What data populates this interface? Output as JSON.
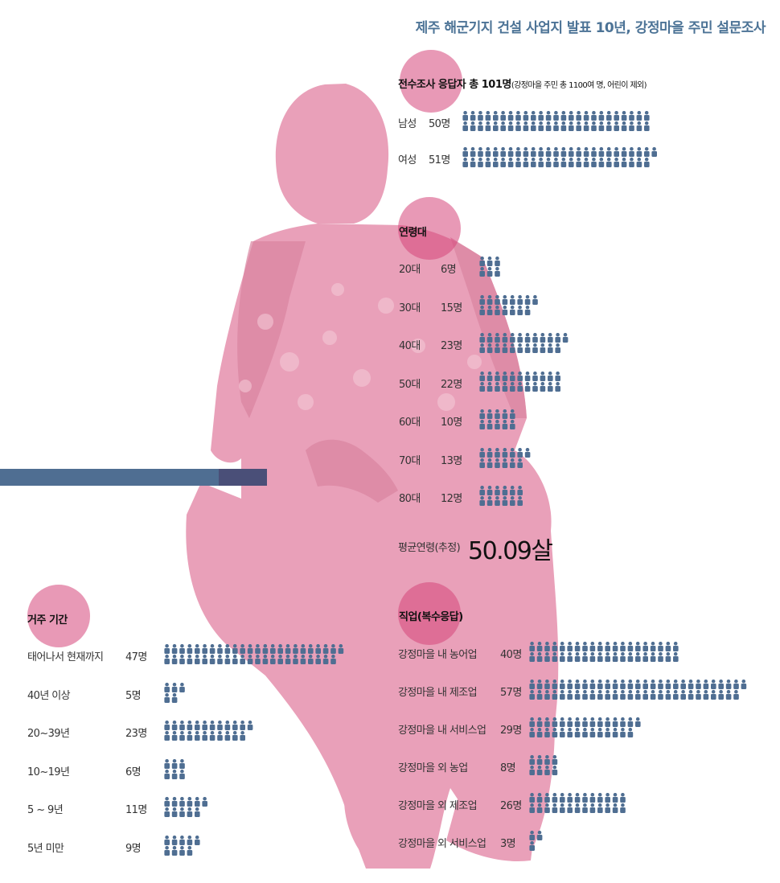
{
  "title": "제주 해군기지 건설 사업지 발표 10년, 강정마을 주민 설문조사",
  "colors": {
    "pink": "#e9a0b9",
    "magenta": "#d6467a",
    "navy": "#4f6e92",
    "title": "#4c7396"
  },
  "chart_data": [
    {
      "type": "pictograph",
      "title": "전수조사 응답자 총 101명",
      "subtitle": "(강정마을 주민 총 1100여 명, 어린이 제외)",
      "categories": [
        "남성",
        "여성"
      ],
      "values": [
        50,
        51
      ],
      "value_labels": [
        "50명",
        "51명"
      ]
    },
    {
      "type": "pictograph",
      "title": "연령대",
      "categories": [
        "20대",
        "30대",
        "40대",
        "50대",
        "60대",
        "70대",
        "80대"
      ],
      "values": [
        6,
        15,
        23,
        22,
        10,
        13,
        12
      ],
      "value_labels": [
        "6명",
        "15명",
        "23명",
        "22명",
        "10명",
        "13명",
        "12명"
      ],
      "average_label": "평균연령(추정)",
      "average_value": "50.09살"
    },
    {
      "type": "pictograph",
      "title": "거주 기간",
      "categories": [
        "태어나서 현재까지",
        "40년 이상",
        "20~39년",
        "10~19년",
        "5 ~ 9년",
        "5년 미만"
      ],
      "values": [
        47,
        5,
        23,
        6,
        11,
        9
      ],
      "value_labels": [
        "47명",
        "5명",
        "23명",
        "6명",
        "11명",
        "9명"
      ]
    },
    {
      "type": "pictograph",
      "title": "직업(복수응답)",
      "categories": [
        "강정마을 내 농어업",
        "강정마을 내 제조업",
        "강정마을 내 서비스업",
        "강정마을 외 농업",
        "강정마을 외 제조업",
        "강정마을 외 서비스업"
      ],
      "values": [
        40,
        57,
        29,
        8,
        26,
        3
      ],
      "value_labels": [
        "40명",
        "57명",
        "29명",
        "8명",
        "26명",
        "3명"
      ]
    }
  ]
}
